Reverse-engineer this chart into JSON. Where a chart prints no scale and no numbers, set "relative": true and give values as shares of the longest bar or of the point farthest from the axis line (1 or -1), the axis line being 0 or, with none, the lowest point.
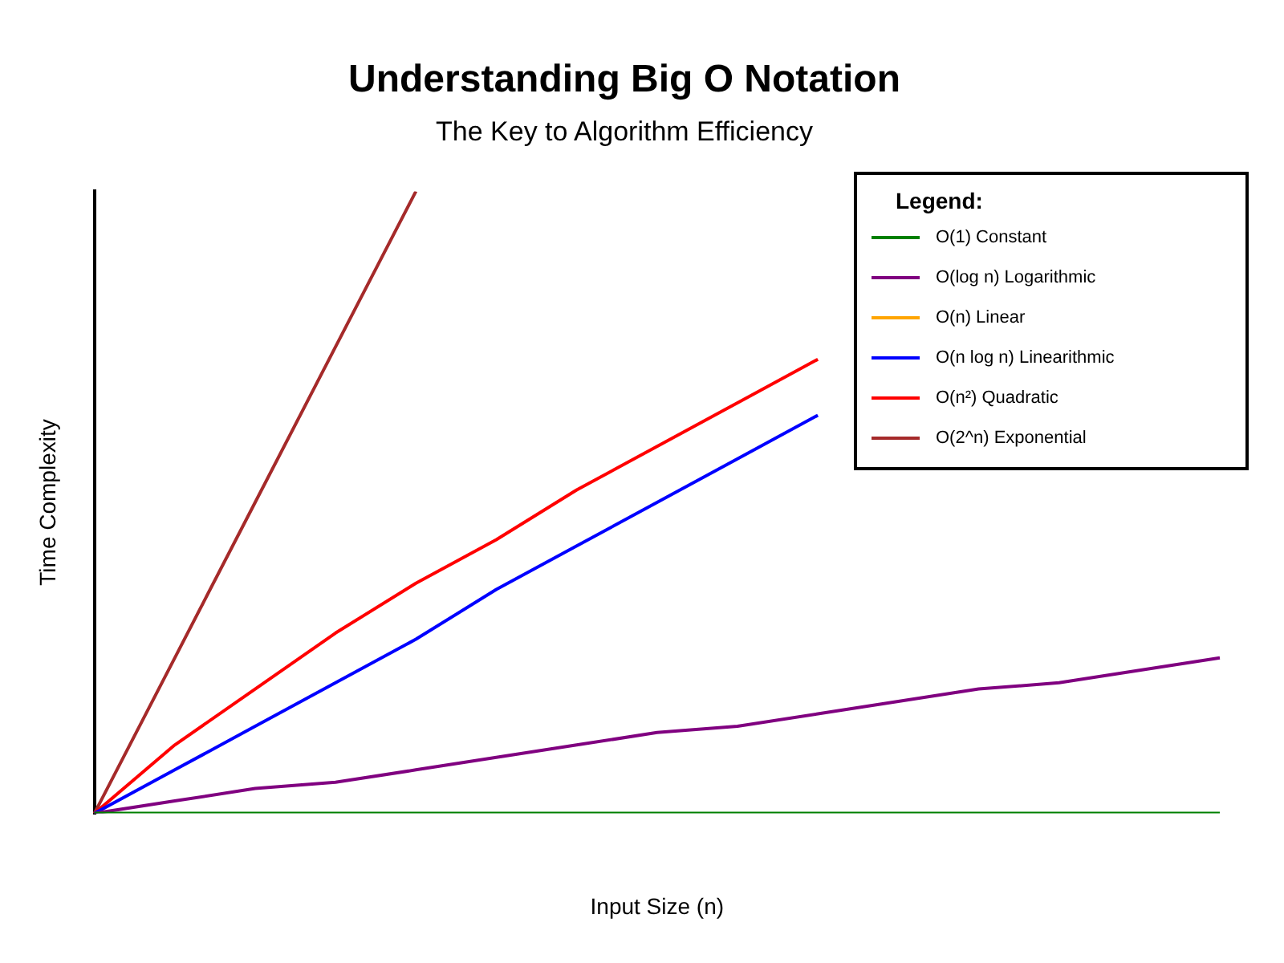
{
  "chart_data": {
    "type": "line",
    "title": "Understanding Big O Notation",
    "subtitle": "The Key to Algorithm Efficiency",
    "xlabel": "Input Size (n)",
    "ylabel": "Time Complexity",
    "legend_title": "Legend:",
    "legend": "top right",
    "relative": true,
    "grid": false,
    "marker": "none",
    "categories": [
      null,
      null,
      null,
      null,
      null,
      null,
      null,
      null,
      null,
      null,
      null,
      null,
      null,
      null,
      null
    ],
    "series": [
      {
        "name": "O(1) Constant",
        "color": "#008000",
        "values": [
          0,
          0,
          0,
          0,
          0,
          0,
          0,
          0,
          0,
          0,
          0,
          0,
          0,
          0,
          0
        ]
      },
      {
        "name": "O(log n) Logarithmic",
        "color": "#800080",
        "values": [
          0,
          0.02,
          0.04,
          0.05,
          0.07,
          0.09,
          0.11,
          0.13,
          0.14,
          0.16,
          0.18,
          0.2,
          0.21,
          0.23,
          0.25
        ]
      },
      {
        "name": "O(n) Linear",
        "color": "#ffa500",
        "values": [
          null,
          null,
          null,
          null,
          null,
          null,
          null,
          null,
          null,
          null,
          null,
          null,
          null,
          null,
          null
        ]
      },
      {
        "name": "O(n log n) Linearithmic",
        "color": "#0000ff",
        "values": [
          0,
          0.07,
          0.14,
          0.21,
          0.28,
          0.36,
          0.43,
          0.5,
          0.57,
          0.64,
          null,
          null,
          null,
          null,
          null
        ]
      },
      {
        "name": "O(n²) Quadratic",
        "color": "#ff0000",
        "values": [
          0,
          0.11,
          0.2,
          0.29,
          0.37,
          0.44,
          0.52,
          0.59,
          0.66,
          0.73,
          null,
          null,
          null,
          null,
          null
        ]
      },
      {
        "name": "O(2^n) Exponential",
        "color": "#a52a2a",
        "values": [
          0,
          0.25,
          0.5,
          0.75,
          1,
          null,
          null,
          null,
          null,
          null,
          null,
          null,
          null,
          null,
          null
        ]
      }
    ]
  }
}
